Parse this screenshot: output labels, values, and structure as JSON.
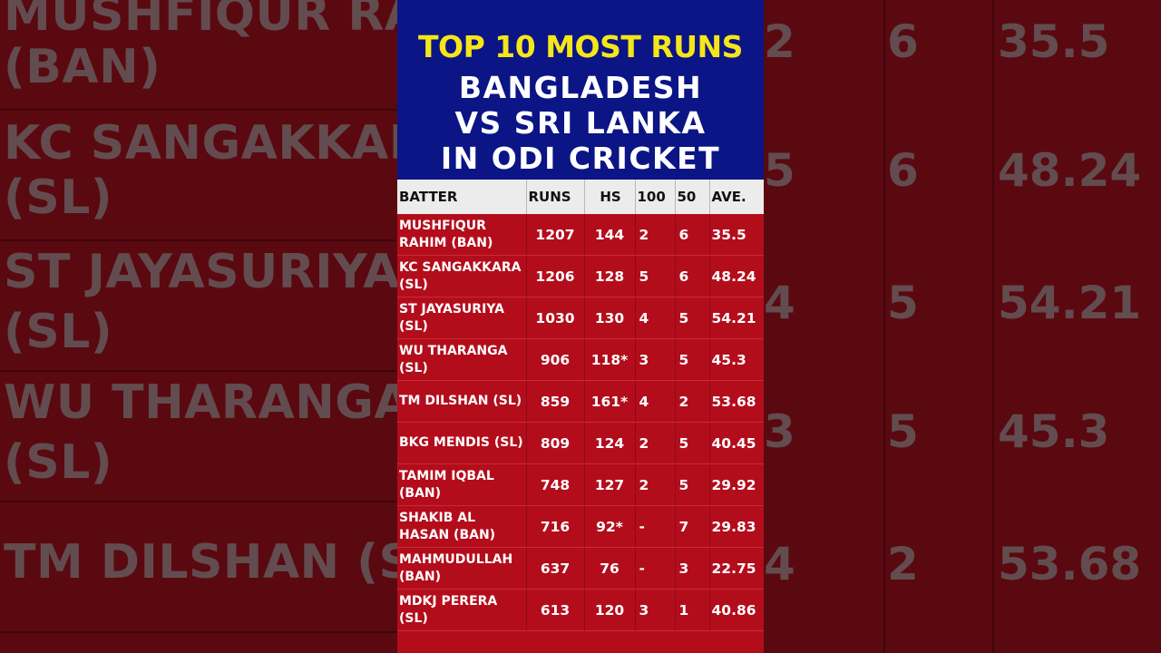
{
  "title": {
    "line1": "TOP 10 MOST RUNS",
    "line2": "BANGLADESH",
    "line3": "VS SRI LANKA",
    "line4": "IN ODI CRICKET"
  },
  "colors": {
    "header_bg": "#0b1585",
    "title_yellow": "#f5e619",
    "table_bg": "#b30d1c",
    "table_header_bg": "#ececec"
  },
  "columns": [
    "BATTER",
    "RUNS",
    "HS",
    "100",
    "50",
    "AVE."
  ],
  "rows": [
    {
      "batter": "MUSHFIQUR RAHIM (BAN)",
      "runs": "1207",
      "hs": "144",
      "hundreds": "2",
      "fifties": "6",
      "ave": "35.5"
    },
    {
      "batter": "KC SANGAKKARA (SL)",
      "runs": "1206",
      "hs": "128",
      "hundreds": "5",
      "fifties": "6",
      "ave": "48.24"
    },
    {
      "batter": "ST JAYASURIYA (SL)",
      "runs": "1030",
      "hs": "130",
      "hundreds": "4",
      "fifties": "5",
      "ave": "54.21"
    },
    {
      "batter": "WU THARANGA (SL)",
      "runs": "906",
      "hs": "118*",
      "hundreds": "3",
      "fifties": "5",
      "ave": "45.3"
    },
    {
      "batter": "TM DILSHAN (SL)",
      "runs": "859",
      "hs": "161*",
      "hundreds": "4",
      "fifties": "2",
      "ave": "53.68"
    },
    {
      "batter": "BKG MENDIS (SL)",
      "runs": "809",
      "hs": "124",
      "hundreds": "2",
      "fifties": "5",
      "ave": "40.45"
    },
    {
      "batter": "TAMIM IQBAL (BAN)",
      "runs": "748",
      "hs": "127",
      "hundreds": "2",
      "fifties": "5",
      "ave": "29.92"
    },
    {
      "batter": "SHAKIB AL HASAN (BAN)",
      "runs": "716",
      "hs": "92*",
      "hundreds": "-",
      "fifties": "7",
      "ave": "29.83"
    },
    {
      "batter": "MAHMUDULLAH (BAN)",
      "runs": "637",
      "hs": "76",
      "hundreds": "-",
      "fifties": "3",
      "ave": "22.75"
    },
    {
      "batter": "MDKJ PERERA (SL)",
      "runs": "613",
      "hs": "120",
      "hundreds": "3",
      "fifties": "1",
      "ave": "40.86"
    }
  ],
  "background": {
    "left_lines": [
      "MUSHFIQUR RAHIM",
      "(BAN)",
      "KC SANGAKKARA",
      "(SL)",
      "ST JAYASURIYA",
      "(SL)",
      "WU THARANGA",
      "(SL)",
      "TM DILSHAN (SL)"
    ],
    "right_rows": [
      {
        "a": "2",
        "b": "6",
        "c": "35.5"
      },
      {
        "a": "5",
        "b": "6",
        "c": "48.24"
      },
      {
        "a": "4",
        "b": "5",
        "c": "54.21"
      },
      {
        "a": "3",
        "b": "5",
        "c": "45.3"
      },
      {
        "a": "4",
        "b": "2",
        "c": "53.68"
      }
    ]
  }
}
